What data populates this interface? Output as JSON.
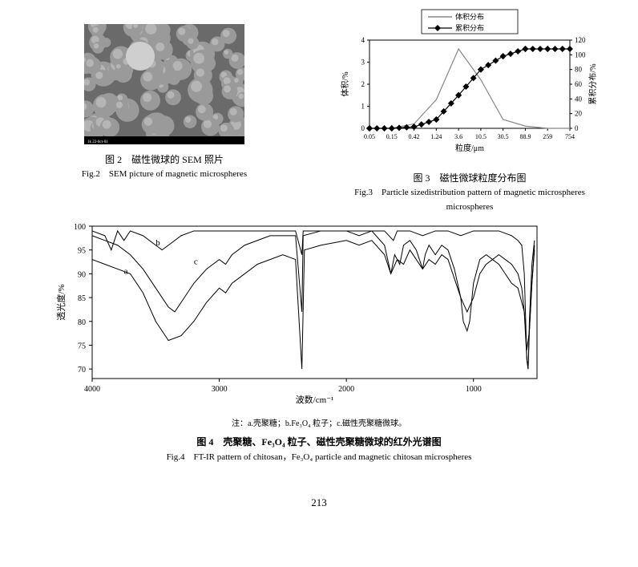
{
  "page_number": "213",
  "fig2": {
    "cn_caption": "图 2　磁性微球的 SEM 照片",
    "en_caption": "Fig.2　SEM picture of magnetic microspheres",
    "image_bg": "#6a6a6a",
    "sphere_color": "#9a9a9a",
    "sphere_highlight": "#cfcfcf",
    "image_footer_text": "1k  22-0ct-01"
  },
  "fig3": {
    "type": "line_dual_axis",
    "cn_caption": "图 3　磁性微球粒度分布图",
    "en_caption": "Fig.3　Particle sizedistribution pattern of magnetic microspheres",
    "x_label": "粒度/μm",
    "y_left_label": "体积/%",
    "y_right_label": "累积分布/%",
    "y_left_ticks": [
      0,
      1,
      2,
      3,
      4
    ],
    "y_right_ticks": [
      0,
      20,
      40,
      60,
      80,
      100,
      120
    ],
    "x_categories": [
      "0.05",
      "0.15",
      "0.42",
      "1.24",
      "3.6",
      "10.5",
      "30.5",
      "88.9",
      "259",
      "754"
    ],
    "legend": [
      {
        "label": "体积分布",
        "marker": "none",
        "color": "#888888"
      },
      {
        "label": "累积分布",
        "marker": "diamond",
        "color": "#000000"
      }
    ],
    "volume_series": {
      "color": "#888888",
      "line_width": 1.2,
      "points": [
        [
          0,
          0.0
        ],
        [
          1,
          0.0
        ],
        [
          2,
          0.2
        ],
        [
          3,
          1.3
        ],
        [
          4,
          3.6
        ],
        [
          5,
          2.2
        ],
        [
          6,
          0.4
        ],
        [
          7,
          0.1
        ],
        [
          8,
          0.0
        ],
        [
          9,
          0.0
        ]
      ]
    },
    "cumulative_series": {
      "color": "#000000",
      "line_width": 1.2,
      "marker": "diamond",
      "marker_size": 4,
      "points": [
        [
          0,
          0
        ],
        [
          1,
          0
        ],
        [
          2,
          2
        ],
        [
          3,
          12
        ],
        [
          4,
          45
        ],
        [
          5,
          80
        ],
        [
          6,
          98
        ],
        [
          7,
          108
        ],
        [
          8,
          108
        ],
        [
          9,
          108
        ]
      ]
    },
    "y_left_lim": [
      0,
      4
    ],
    "y_right_lim": [
      0,
      120
    ],
    "background_color": "#ffffff",
    "axis_color": "#000000",
    "font_size": 9
  },
  "fig4": {
    "type": "line",
    "cn_caption": "图 4　壳聚糖、Fe₃O₄ 粒子、磁性壳聚糖微球的红外光谱图",
    "en_caption": "Fig.4　FT-IR pattern of chitosan，Fe₃O₄ particle and magnetic chitosan microspheres",
    "note": "注：a.壳聚糖；b.Fe₃O₄ 粒子；c.磁性壳聚糖微球。",
    "x_label": "波数/cm⁻¹",
    "y_label": "透光度/%",
    "x_ticks": [
      4000,
      3000,
      2000,
      1000
    ],
    "y_ticks": [
      70,
      75,
      80,
      85,
      90,
      95,
      100
    ],
    "x_lim": [
      4000,
      500
    ],
    "y_lim": [
      68,
      100
    ],
    "line_color": "#000000",
    "line_width": 1,
    "background_color": "#ffffff",
    "grid_color": "#e0e0e0",
    "font_size": 10,
    "trace_labels": [
      {
        "label": "a",
        "x": 3750,
        "y": 90
      },
      {
        "label": "b",
        "x": 3500,
        "y": 96
      },
      {
        "label": "c",
        "x": 3200,
        "y": 92
      }
    ],
    "series_a": [
      [
        4000,
        93
      ],
      [
        3900,
        92
      ],
      [
        3800,
        91
      ],
      [
        3700,
        90
      ],
      [
        3600,
        86
      ],
      [
        3500,
        80
      ],
      [
        3400,
        76
      ],
      [
        3300,
        77
      ],
      [
        3200,
        80
      ],
      [
        3100,
        84
      ],
      [
        3000,
        87
      ],
      [
        2950,
        86
      ],
      [
        2900,
        88
      ],
      [
        2850,
        89
      ],
      [
        2700,
        92
      ],
      [
        2500,
        94
      ],
      [
        2400,
        93
      ],
      [
        2350,
        70
      ],
      [
        2330,
        95
      ],
      [
        2200,
        96
      ],
      [
        2000,
        97
      ],
      [
        1900,
        96
      ],
      [
        1800,
        97
      ],
      [
        1700,
        94
      ],
      [
        1650,
        90
      ],
      [
        1600,
        93
      ],
      [
        1550,
        92
      ],
      [
        1500,
        95
      ],
      [
        1450,
        93
      ],
      [
        1400,
        91
      ],
      [
        1350,
        93
      ],
      [
        1300,
        92
      ],
      [
        1250,
        94
      ],
      [
        1200,
        93
      ],
      [
        1150,
        89
      ],
      [
        1100,
        85
      ],
      [
        1050,
        82
      ],
      [
        1000,
        85
      ],
      [
        950,
        90
      ],
      [
        900,
        92
      ],
      [
        850,
        93
      ],
      [
        800,
        92
      ],
      [
        750,
        90
      ],
      [
        700,
        88
      ],
      [
        650,
        87
      ],
      [
        600,
        82
      ],
      [
        580,
        74
      ],
      [
        560,
        78
      ],
      [
        540,
        88
      ],
      [
        520,
        95
      ]
    ],
    "series_b": [
      [
        4000,
        99
      ],
      [
        3900,
        98
      ],
      [
        3850,
        95
      ],
      [
        3800,
        99
      ],
      [
        3750,
        97
      ],
      [
        3700,
        99
      ],
      [
        3600,
        98
      ],
      [
        3500,
        96
      ],
      [
        3450,
        95
      ],
      [
        3400,
        96
      ],
      [
        3300,
        98
      ],
      [
        3200,
        99
      ],
      [
        3000,
        99
      ],
      [
        2900,
        99
      ],
      [
        2700,
        99
      ],
      [
        2500,
        99
      ],
      [
        2400,
        99
      ],
      [
        2350,
        94
      ],
      [
        2340,
        99
      ],
      [
        2200,
        99
      ],
      [
        2000,
        99
      ],
      [
        1800,
        99
      ],
      [
        1700,
        99
      ],
      [
        1630,
        97
      ],
      [
        1600,
        99
      ],
      [
        1500,
        99
      ],
      [
        1400,
        98
      ],
      [
        1300,
        99
      ],
      [
        1200,
        99
      ],
      [
        1100,
        98
      ],
      [
        1000,
        99
      ],
      [
        900,
        99
      ],
      [
        800,
        99
      ],
      [
        700,
        98
      ],
      [
        650,
        97
      ],
      [
        620,
        96
      ],
      [
        600,
        90
      ],
      [
        580,
        72
      ],
      [
        570,
        70
      ],
      [
        560,
        80
      ],
      [
        540,
        92
      ],
      [
        520,
        97
      ]
    ],
    "series_c": [
      [
        4000,
        98
      ],
      [
        3900,
        97
      ],
      [
        3800,
        96
      ],
      [
        3700,
        94
      ],
      [
        3600,
        91
      ],
      [
        3500,
        87
      ],
      [
        3400,
        83
      ],
      [
        3350,
        82
      ],
      [
        3300,
        84
      ],
      [
        3200,
        88
      ],
      [
        3100,
        91
      ],
      [
        3000,
        93
      ],
      [
        2950,
        92
      ],
      [
        2900,
        94
      ],
      [
        2800,
        96
      ],
      [
        2600,
        98
      ],
      [
        2500,
        98
      ],
      [
        2400,
        98
      ],
      [
        2350,
        82
      ],
      [
        2340,
        98
      ],
      [
        2200,
        99
      ],
      [
        2000,
        99
      ],
      [
        1900,
        98
      ],
      [
        1800,
        99
      ],
      [
        1700,
        96
      ],
      [
        1650,
        90
      ],
      [
        1620,
        94
      ],
      [
        1580,
        92
      ],
      [
        1550,
        96
      ],
      [
        1500,
        97
      ],
      [
        1450,
        95
      ],
      [
        1400,
        91
      ],
      [
        1380,
        94
      ],
      [
        1350,
        96
      ],
      [
        1300,
        94
      ],
      [
        1250,
        96
      ],
      [
        1200,
        95
      ],
      [
        1150,
        91
      ],
      [
        1100,
        85
      ],
      [
        1080,
        80
      ],
      [
        1050,
        78
      ],
      [
        1030,
        80
      ],
      [
        1000,
        88
      ],
      [
        950,
        93
      ],
      [
        900,
        94
      ],
      [
        850,
        93
      ],
      [
        800,
        94
      ],
      [
        750,
        93
      ],
      [
        700,
        92
      ],
      [
        650,
        90
      ],
      [
        620,
        87
      ],
      [
        600,
        82
      ],
      [
        580,
        72
      ],
      [
        570,
        70
      ],
      [
        560,
        78
      ],
      [
        540,
        88
      ],
      [
        520,
        96
      ]
    ]
  }
}
